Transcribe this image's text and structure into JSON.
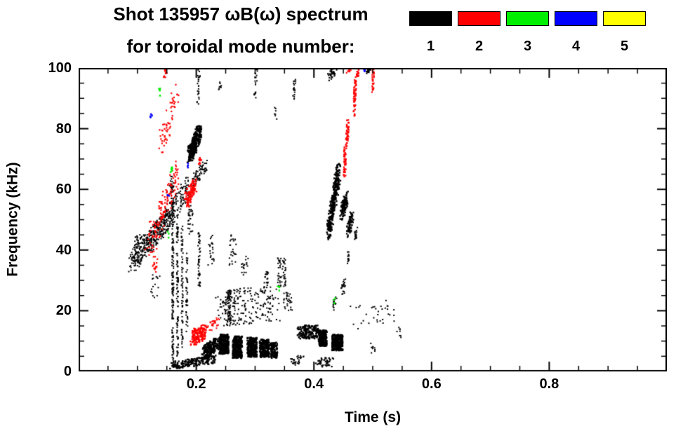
{
  "chart_data": {
    "type": "scatter",
    "title": "Shot 135957 ωB(ω) spectrum",
    "subtitle": "for toroidal mode number:",
    "xlabel": "Time (s)",
    "ylabel": "Frequency (kHz)",
    "xlim": [
      0.0,
      1.0
    ],
    "ylim": [
      0,
      100
    ],
    "x_tick_values": [
      0.2,
      0.4,
      0.6,
      0.8
    ],
    "x_tick_labels": [
      "0.2",
      "0.4",
      "0.6",
      "0.8"
    ],
    "y_tick_values": [
      0,
      20,
      40,
      60,
      80,
      100
    ],
    "y_tick_labels": [
      "0",
      "20",
      "40",
      "60",
      "80",
      "100"
    ],
    "x_minor_step": 0.05,
    "y_minor_step": 5,
    "grid": false,
    "legend": {
      "position": "top-right",
      "entries": [
        {
          "label": "1",
          "color": "#000000"
        },
        {
          "label": "2",
          "color": "#ff0000"
        },
        {
          "label": "3",
          "color": "#00ee00"
        },
        {
          "label": "4",
          "color": "#0000ff"
        },
        {
          "label": "5",
          "color": "#ffff00"
        }
      ]
    },
    "series": [
      {
        "name": "n=1",
        "color": "#000000",
        "clusters": [
          {
            "t0": 0.09,
            "f0": 36,
            "t1": 0.155,
            "f1": 51,
            "jt": 0.005,
            "jf": 3.5,
            "n": 380,
            "sz": 2
          },
          {
            "t0": 0.095,
            "f0": 42,
            "t1": 0.105,
            "f1": 44,
            "jt": 0.004,
            "jf": 2,
            "n": 30,
            "sz": 2
          },
          {
            "t0": 0.15,
            "f0": 50,
            "t1": 0.187,
            "f1": 61,
            "jt": 0.004,
            "jf": 4,
            "n": 130,
            "sz": 2
          },
          {
            "t0": 0.188,
            "f0": 71,
            "t1": 0.206,
            "f1": 79,
            "jt": 0.004,
            "jf": 2.8,
            "n": 260,
            "sz": 2.6
          },
          {
            "t0": 0.196,
            "f0": 63,
            "t1": 0.216,
            "f1": 68,
            "jt": 0.003,
            "jf": 2,
            "n": 60,
            "sz": 2
          },
          {
            "t0": 0.16,
            "f0": 2,
            "t1": 0.16,
            "f1": 58,
            "jt": 0.0015,
            "jf": 0,
            "n": 140,
            "sz": 2
          },
          {
            "t0": 0.168,
            "f0": 5,
            "t1": 0.168,
            "f1": 52,
            "jt": 0.0015,
            "jf": 0,
            "n": 100,
            "sz": 2
          },
          {
            "t0": 0.176,
            "f0": 8,
            "t1": 0.176,
            "f1": 48,
            "jt": 0.0015,
            "jf": 0,
            "n": 70,
            "sz": 2
          },
          {
            "t0": 0.184,
            "f0": 12,
            "t1": 0.184,
            "f1": 42,
            "jt": 0.0015,
            "jf": 0,
            "n": 45,
            "sz": 2
          },
          {
            "t0": 0.205,
            "f0": 28,
            "t1": 0.205,
            "f1": 47,
            "jt": 0.002,
            "jf": 0,
            "n": 45,
            "sz": 2
          },
          {
            "t0": 0.158,
            "f0": 2,
            "t1": 0.232,
            "f1": 4,
            "jt": 0.003,
            "jf": 1.3,
            "n": 170,
            "sz": 2.4
          },
          {
            "t0": 0.212,
            "f0": 6,
            "t1": 0.236,
            "f1": 9,
            "jt": 0.004,
            "jf": 2.2,
            "n": 210,
            "sz": 2.4
          },
          {
            "t0": 0.247,
            "f0": 9,
            "t1": 0.247,
            "f1": 9,
            "jt": 0.008,
            "jf": 3.2,
            "n": 260,
            "sz": 2.6
          },
          {
            "t0": 0.27,
            "f0": 8,
            "t1": 0.27,
            "f1": 8,
            "jt": 0.008,
            "jf": 3.6,
            "n": 260,
            "sz": 2.6
          },
          {
            "t0": 0.295,
            "f0": 8,
            "t1": 0.295,
            "f1": 8,
            "jt": 0.008,
            "jf": 3.2,
            "n": 230,
            "sz": 2.6
          },
          {
            "t0": 0.316,
            "f0": 7.5,
            "t1": 0.316,
            "f1": 7.5,
            "jt": 0.008,
            "jf": 3,
            "n": 210,
            "sz": 2.6
          },
          {
            "t0": 0.332,
            "f0": 7,
            "t1": 0.332,
            "f1": 7,
            "jt": 0.006,
            "jf": 2.6,
            "n": 120,
            "sz": 2.4
          },
          {
            "t0": 0.24,
            "f0": 21,
            "t1": 0.335,
            "f1": 22,
            "jt": 0.01,
            "jf": 6,
            "n": 230,
            "sz": 2
          },
          {
            "t0": 0.256,
            "f0": 21,
            "t1": 0.256,
            "f1": 21,
            "jt": 0.003,
            "jf": 6,
            "n": 60,
            "sz": 2
          },
          {
            "t0": 0.345,
            "f0": 33,
            "t1": 0.345,
            "f1": 33,
            "jt": 0.007,
            "jf": 5,
            "n": 55,
            "sz": 2
          },
          {
            "t0": 0.375,
            "f0": 13,
            "t1": 0.406,
            "f1": 13,
            "jt": 0.004,
            "jf": 2.2,
            "n": 160,
            "sz": 2.4
          },
          {
            "t0": 0.415,
            "f0": 11,
            "t1": 0.415,
            "f1": 11,
            "jt": 0.007,
            "jf": 2.6,
            "n": 210,
            "sz": 2.6
          },
          {
            "t0": 0.44,
            "f0": 9.5,
            "t1": 0.44,
            "f1": 9.5,
            "jt": 0.009,
            "jf": 2.6,
            "n": 270,
            "sz": 2.6
          },
          {
            "t0": 0.425,
            "f0": 46,
            "t1": 0.442,
            "f1": 66,
            "jt": 0.0035,
            "jf": 3,
            "n": 310,
            "sz": 2.5
          },
          {
            "t0": 0.447,
            "f0": 52,
            "t1": 0.456,
            "f1": 57,
            "jt": 0.003,
            "jf": 2.5,
            "n": 120,
            "sz": 2.4
          },
          {
            "t0": 0.458,
            "f0": 46,
            "t1": 0.465,
            "f1": 51,
            "jt": 0.003,
            "jf": 2,
            "n": 80,
            "sz": 2.2
          },
          {
            "t0": 0.47,
            "f0": 44,
            "t1": 0.472,
            "f1": 46,
            "jt": 0.002,
            "jf": 1.5,
            "n": 25,
            "sz": 2
          },
          {
            "t0": 0.426,
            "f0": 97,
            "t1": 0.437,
            "f1": 100,
            "jt": 0.003,
            "jf": 1.5,
            "n": 45,
            "sz": 2.2
          },
          {
            "t0": 0.49,
            "f0": 99,
            "t1": 0.496,
            "f1": 100,
            "jt": 0.002,
            "jf": 1,
            "n": 22,
            "sz": 2.2
          },
          {
            "t0": 0.203,
            "f0": 88,
            "t1": 0.205,
            "f1": 100,
            "jt": 0.002,
            "jf": 0,
            "n": 26,
            "sz": 2
          },
          {
            "t0": 0.24,
            "f0": 92,
            "t1": 0.241,
            "f1": 95,
            "jt": 0.002,
            "jf": 1,
            "n": 10,
            "sz": 2
          },
          {
            "t0": 0.3,
            "f0": 90,
            "t1": 0.302,
            "f1": 100,
            "jt": 0.002,
            "jf": 0,
            "n": 22,
            "sz": 2
          },
          {
            "t0": 0.365,
            "f0": 89,
            "t1": 0.368,
            "f1": 97,
            "jt": 0.002,
            "jf": 0,
            "n": 18,
            "sz": 2
          },
          {
            "t0": 0.47,
            "f0": 18,
            "t1": 0.53,
            "f1": 20,
            "jt": 0.01,
            "jf": 4,
            "n": 34,
            "sz": 2
          },
          {
            "t0": 0.545,
            "f0": 13,
            "t1": 0.545,
            "f1": 13,
            "jt": 0.004,
            "jf": 2,
            "n": 8,
            "sz": 2
          },
          {
            "t0": 0.5,
            "f0": 8,
            "t1": 0.5,
            "f1": 8,
            "jt": 0.004,
            "jf": 2,
            "n": 9,
            "sz": 2
          },
          {
            "t0": 0.13,
            "f0": 28,
            "t1": 0.13,
            "f1": 28,
            "jt": 0.008,
            "jf": 4,
            "n": 16,
            "sz": 2
          },
          {
            "t0": 0.158,
            "f0": 62,
            "t1": 0.158,
            "f1": 62,
            "jt": 0.004,
            "jf": 3,
            "n": 26,
            "sz": 2
          },
          {
            "t0": 0.19,
            "f0": 50,
            "t1": 0.19,
            "f1": 50,
            "jt": 0.004,
            "jf": 5,
            "n": 30,
            "sz": 2
          },
          {
            "t0": 0.225,
            "f0": 40,
            "t1": 0.225,
            "f1": 40,
            "jt": 0.005,
            "jf": 5,
            "n": 22,
            "sz": 2
          },
          {
            "t0": 0.262,
            "f0": 40,
            "t1": 0.262,
            "f1": 40,
            "jt": 0.006,
            "jf": 5,
            "n": 26,
            "sz": 2
          },
          {
            "t0": 0.355,
            "f0": 23,
            "t1": 0.355,
            "f1": 23,
            "jt": 0.008,
            "jf": 3,
            "n": 30,
            "sz": 2
          },
          {
            "t0": 0.405,
            "f0": 3,
            "t1": 0.432,
            "f1": 3,
            "jt": 0.004,
            "jf": 1.5,
            "n": 45,
            "sz": 2.2
          },
          {
            "t0": 0.362,
            "f0": 3,
            "t1": 0.38,
            "f1": 4,
            "jt": 0.004,
            "jf": 1.5,
            "n": 30,
            "sz": 2
          },
          {
            "t0": 0.447,
            "f0": 26,
            "t1": 0.452,
            "f1": 30,
            "jt": 0.003,
            "jf": 2,
            "n": 22,
            "sz": 2
          },
          {
            "t0": 0.432,
            "f0": 21,
            "t1": 0.436,
            "f1": 23,
            "jt": 0.003,
            "jf": 1.5,
            "n": 15,
            "sz": 2
          },
          {
            "t0": 0.457,
            "f0": 36,
            "t1": 0.459,
            "f1": 39,
            "jt": 0.002,
            "jf": 1.5,
            "n": 14,
            "sz": 2
          },
          {
            "t0": 0.335,
            "f0": 85,
            "t1": 0.335,
            "f1": 85,
            "jt": 0.002,
            "jf": 2,
            "n": 7,
            "sz": 2
          },
          {
            "t0": 0.318,
            "f0": 28,
            "t1": 0.32,
            "f1": 33,
            "jt": 0.003,
            "jf": 2,
            "n": 20,
            "sz": 2
          },
          {
            "t0": 0.28,
            "f0": 33,
            "t1": 0.285,
            "f1": 36,
            "jt": 0.004,
            "jf": 2.5,
            "n": 18,
            "sz": 2
          }
        ]
      },
      {
        "name": "n=2",
        "color": "#ff0000",
        "clusters": [
          {
            "t0": 0.118,
            "f0": 40,
            "t1": 0.168,
            "f1": 66,
            "jt": 0.006,
            "jf": 5,
            "n": 140,
            "sz": 2.2
          },
          {
            "t0": 0.138,
            "f0": 72,
            "t1": 0.165,
            "f1": 93,
            "jt": 0.006,
            "jf": 4,
            "n": 60,
            "sz": 2.2
          },
          {
            "t0": 0.146,
            "f0": 97,
            "t1": 0.15,
            "f1": 100,
            "jt": 0.002,
            "jf": 1,
            "n": 12,
            "sz": 2.2
          },
          {
            "t0": 0.183,
            "f0": 56,
            "t1": 0.198,
            "f1": 62,
            "jt": 0.004,
            "jf": 2.6,
            "n": 120,
            "sz": 2.3
          },
          {
            "t0": 0.193,
            "f0": 11,
            "t1": 0.216,
            "f1": 13,
            "jt": 0.005,
            "jf": 2.6,
            "n": 170,
            "sz": 2.3
          },
          {
            "t0": 0.222,
            "f0": 15,
            "t1": 0.238,
            "f1": 16,
            "jt": 0.004,
            "jf": 1.8,
            "n": 30,
            "sz": 2
          },
          {
            "t0": 0.452,
            "f0": 64,
            "t1": 0.453,
            "f1": 74,
            "jt": 0.002,
            "jf": 0,
            "n": 50,
            "sz": 2.3
          },
          {
            "t0": 0.456,
            "f0": 74,
            "t1": 0.458,
            "f1": 83,
            "jt": 0.002,
            "jf": 0,
            "n": 40,
            "sz": 2.3
          },
          {
            "t0": 0.468,
            "f0": 84,
            "t1": 0.471,
            "f1": 97,
            "jt": 0.002,
            "jf": 0,
            "n": 55,
            "sz": 2.3
          },
          {
            "t0": 0.474,
            "f0": 97,
            "t1": 0.476,
            "f1": 100,
            "jt": 0.002,
            "jf": 0,
            "n": 18,
            "sz": 2.2
          },
          {
            "t0": 0.5,
            "f0": 92,
            "t1": 0.501,
            "f1": 100,
            "jt": 0.0015,
            "jf": 0,
            "n": 30,
            "sz": 2.2
          },
          {
            "t0": 0.458,
            "f0": 99,
            "t1": 0.462,
            "f1": 100,
            "jt": 0.003,
            "jf": 0.8,
            "n": 12,
            "sz": 2.2
          },
          {
            "t0": 0.128,
            "f0": 33,
            "t1": 0.132,
            "f1": 36,
            "jt": 0.003,
            "jf": 2,
            "n": 14,
            "sz": 2.2
          },
          {
            "t0": 0.205,
            "f0": 68,
            "t1": 0.208,
            "f1": 71,
            "jt": 0.002,
            "jf": 1.5,
            "n": 12,
            "sz": 2.2
          }
        ]
      },
      {
        "name": "n=3",
        "color": "#00ee00",
        "clusters": [
          {
            "t0": 0.138,
            "f0": 92,
            "t1": 0.138,
            "f1": 92,
            "jt": 0.002,
            "jf": 1.5,
            "n": 4,
            "sz": 2.6
          },
          {
            "t0": 0.158,
            "f0": 67,
            "t1": 0.158,
            "f1": 67,
            "jt": 0.002,
            "jf": 1.5,
            "n": 5,
            "sz": 2.6
          },
          {
            "t0": 0.152,
            "f0": 45,
            "t1": 0.152,
            "f1": 45,
            "jt": 0.002,
            "jf": 1.2,
            "n": 3,
            "sz": 2.4
          },
          {
            "t0": 0.34,
            "f0": 27,
            "t1": 0.34,
            "f1": 27,
            "jt": 0.002,
            "jf": 1.2,
            "n": 4,
            "sz": 2.4
          },
          {
            "t0": 0.435,
            "f0": 23,
            "t1": 0.435,
            "f1": 23,
            "jt": 0.002,
            "jf": 1.2,
            "n": 4,
            "sz": 2.4
          }
        ]
      },
      {
        "name": "n=4",
        "color": "#0000ff",
        "clusters": [
          {
            "t0": 0.124,
            "f0": 84,
            "t1": 0.124,
            "f1": 84,
            "jt": 0.002,
            "jf": 1.5,
            "n": 4,
            "sz": 2.6
          },
          {
            "t0": 0.187,
            "f0": 68,
            "t1": 0.187,
            "f1": 68,
            "jt": 0.002,
            "jf": 1.2,
            "n": 4,
            "sz": 2.4
          },
          {
            "t0": 0.487,
            "f0": 99,
            "t1": 0.487,
            "f1": 100,
            "jt": 0.002,
            "jf": 0.8,
            "n": 6,
            "sz": 2.4
          },
          {
            "t0": 0.153,
            "f0": 57,
            "t1": 0.153,
            "f1": 57,
            "jt": 0.002,
            "jf": 1.2,
            "n": 3,
            "sz": 2.4
          }
        ]
      },
      {
        "name": "n=5",
        "color": "#ffff00",
        "clusters": []
      }
    ]
  }
}
